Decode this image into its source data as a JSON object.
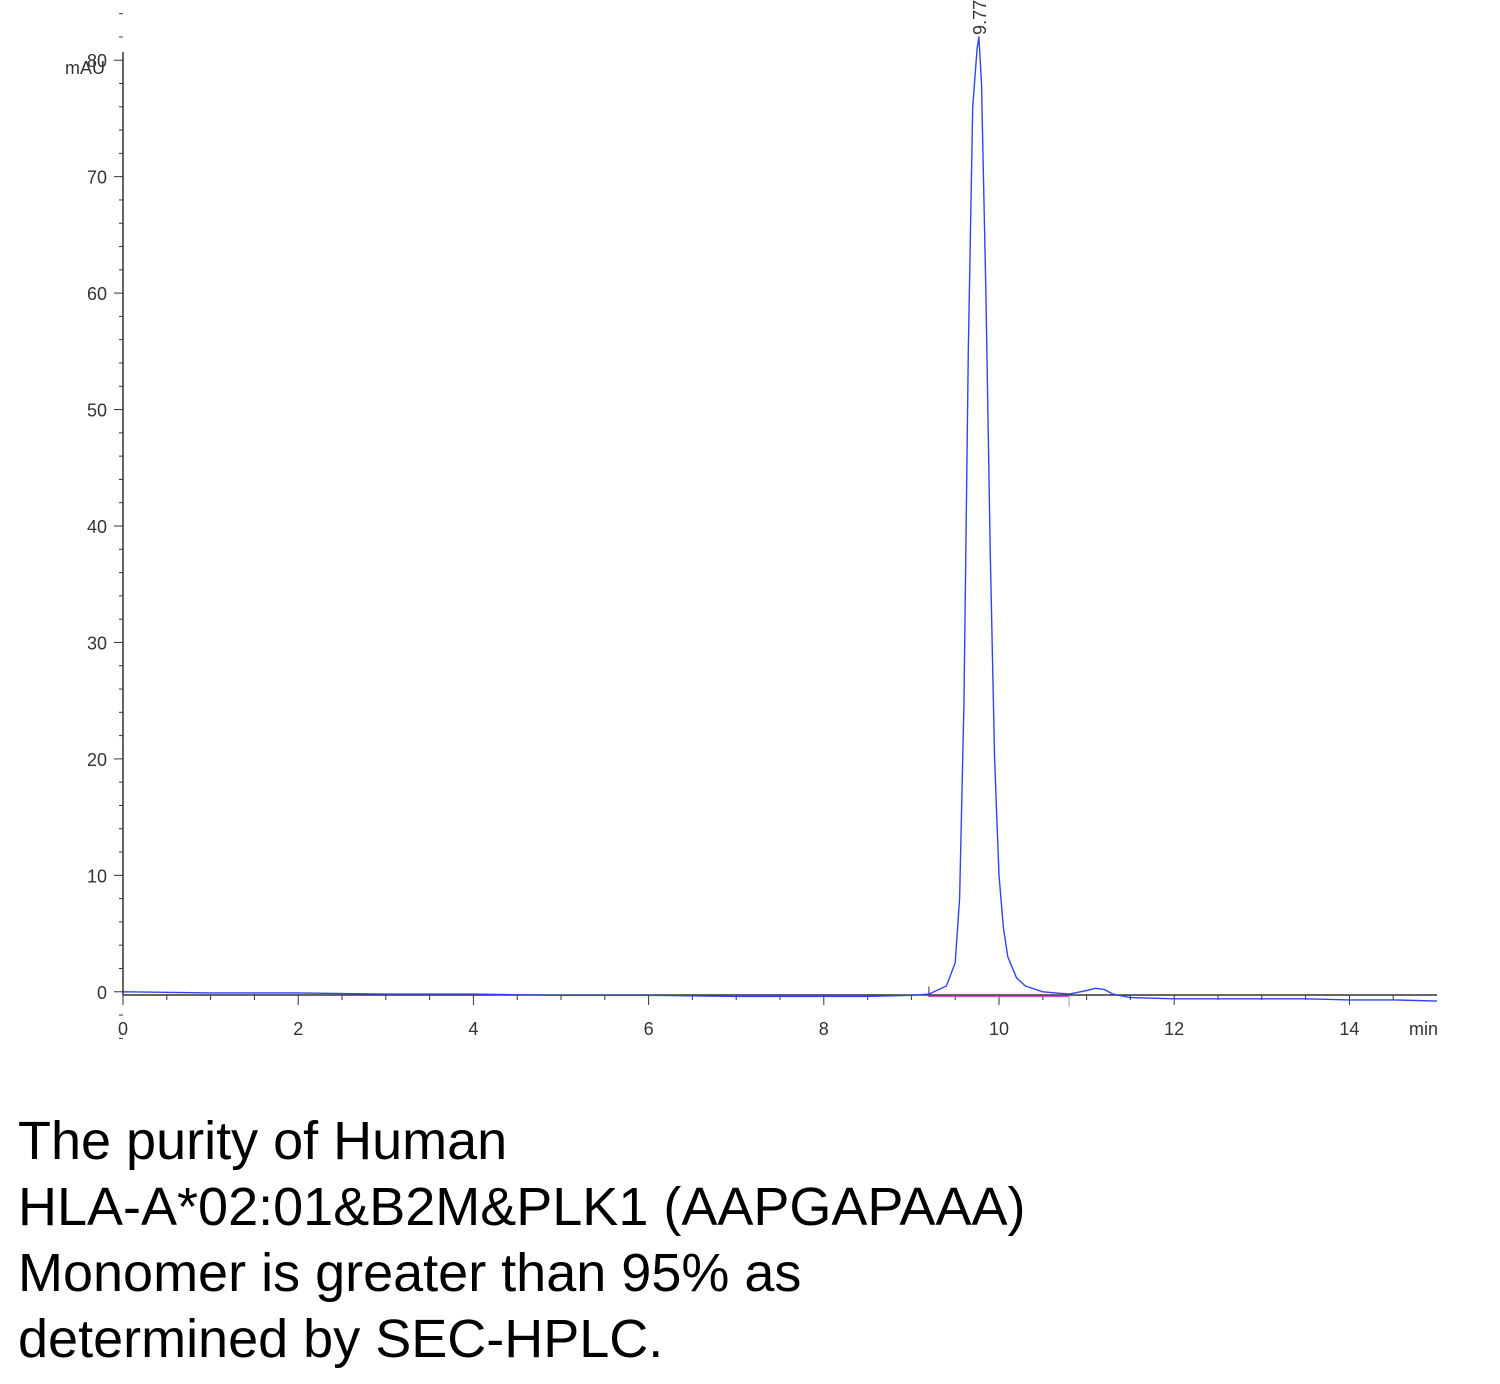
{
  "chart_data": {
    "type": "line",
    "title": "",
    "xlabel": "min",
    "ylabel": "mAU",
    "xlim": [
      0,
      15
    ],
    "ylim": [
      -5,
      85
    ],
    "x_ticks": [
      "0",
      "2",
      "4",
      "6",
      "8",
      "10",
      "12",
      "14"
    ],
    "y_ticks": [
      "0",
      "10",
      "20",
      "30",
      "40",
      "50",
      "60",
      "70",
      "80"
    ],
    "grid": false,
    "series": [
      {
        "color": "#3344ee",
        "x": [
          0,
          1,
          2,
          3,
          4,
          5,
          6,
          7,
          8,
          8.5,
          9.0,
          9.2,
          9.4,
          9.5,
          9.55,
          9.6,
          9.65,
          9.7,
          9.75,
          9.77,
          9.8,
          9.85,
          9.9,
          9.95,
          10.0,
          10.05,
          10.1,
          10.2,
          10.3,
          10.5,
          10.8,
          11.0,
          11.1,
          11.2,
          11.3,
          11.5,
          12,
          12.5,
          13,
          13.5,
          14,
          14.5,
          15
        ],
        "y": [
          0,
          -0.1,
          -0.1,
          -0.2,
          -0.2,
          -0.3,
          -0.3,
          -0.4,
          -0.4,
          -0.4,
          -0.3,
          -0.2,
          0.5,
          2.5,
          8,
          25,
          55,
          76,
          81,
          82,
          78,
          60,
          38,
          20,
          10,
          5.5,
          3,
          1.2,
          0.5,
          0,
          -0.2,
          0.1,
          0.3,
          0.2,
          -0.2,
          -0.5,
          -0.6,
          -0.6,
          -0.6,
          -0.6,
          -0.7,
          -0.7,
          -0.8
        ]
      }
    ],
    "annotations": [
      {
        "text": "9.770",
        "x": 9.77,
        "y": 82
      }
    ],
    "baseline": {
      "color": "#e040e0",
      "x": [
        9.2,
        10.8
      ],
      "y": [
        -0.4,
        -0.4
      ]
    }
  },
  "caption": {
    "lines": [
      "The purity of Human",
      "HLA-A*02:01&B2M&PLK1 (AAPGAPAAA)",
      "Monomer is greater than 95% as",
      "determined by SEC-HPLC."
    ]
  }
}
